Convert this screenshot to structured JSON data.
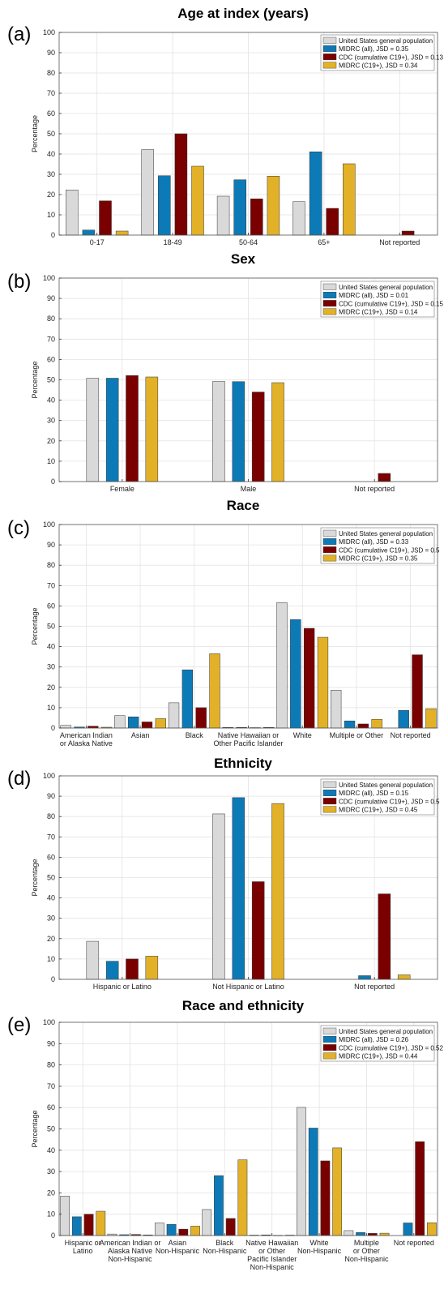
{
  "legend_names": {
    "us": "United States general population",
    "midrc_all": "MIDRC (all)",
    "cdc": "CDC (cumulative C19+)",
    "midrc_c19": "MIDRC (C19+)"
  },
  "colors": {
    "us": "#d9d9d9",
    "midrc_all": "#0d7ab8",
    "cdc": "#7a0000",
    "midrc_c19": "#e3b128"
  },
  "chart_data": [
    {
      "type": "bar",
      "letter": "(a)",
      "title": "Age at index (years)",
      "ylabel": "Percentage",
      "ylim": [
        0,
        100
      ],
      "yticks": [
        0,
        10,
        20,
        30,
        40,
        50,
        60,
        70,
        80,
        90,
        100
      ],
      "grid": true,
      "legend_position": "top-right",
      "legend": [
        "United States general population",
        "MIDRC (all), JSD = 0.35",
        "CDC (cumulative C19+), JSD = 0.13",
        "MIDRC (C19+), JSD = 0.34"
      ],
      "categories": [
        [
          "0-17"
        ],
        [
          "18-49"
        ],
        [
          "50-64"
        ],
        [
          "65+"
        ],
        [
          "Not reported"
        ]
      ],
      "series": [
        {
          "key": "us",
          "values": [
            22.3,
            42.2,
            19.2,
            16.5,
            0
          ]
        },
        {
          "key": "midrc_all",
          "values": [
            2.5,
            29.3,
            27.3,
            41.1,
            0
          ]
        },
        {
          "key": "cdc",
          "values": [
            16.9,
            50.0,
            17.9,
            13.2,
            2.0
          ]
        },
        {
          "key": "midrc_c19",
          "values": [
            2.0,
            34.0,
            29.1,
            35.2,
            0
          ]
        }
      ]
    },
    {
      "type": "bar",
      "letter": "(b)",
      "title": "Sex",
      "ylabel": "Percentage",
      "ylim": [
        0,
        100
      ],
      "yticks": [
        0,
        10,
        20,
        30,
        40,
        50,
        60,
        70,
        80,
        90,
        100
      ],
      "grid": true,
      "legend_position": "top-right",
      "legend": [
        "United States general population",
        "MIDRC (all), JSD = 0.01",
        "CDC (cumulative C19+), JSD = 0.15",
        "MIDRC (C19+), JSD = 0.14"
      ],
      "categories": [
        [
          "Female"
        ],
        [
          "Male"
        ],
        [
          "Not reported"
        ]
      ],
      "series": [
        {
          "key": "us",
          "values": [
            50.8,
            49.2,
            0
          ]
        },
        {
          "key": "midrc_all",
          "values": [
            50.8,
            49.1,
            0
          ]
        },
        {
          "key": "cdc",
          "values": [
            52.1,
            44.0,
            4.0
          ]
        },
        {
          "key": "midrc_c19",
          "values": [
            51.4,
            48.6,
            0
          ]
        }
      ]
    },
    {
      "type": "bar",
      "letter": "(c)",
      "title": "Race",
      "ylabel": "Percentage",
      "ylim": [
        0,
        100
      ],
      "yticks": [
        0,
        10,
        20,
        30,
        40,
        50,
        60,
        70,
        80,
        90,
        100
      ],
      "grid": true,
      "legend_position": "top-right",
      "legend": [
        "United States general population",
        "MIDRC (all), JSD = 0.33",
        "CDC (cumulative C19+), JSD = 0.5",
        "MIDRC (C19+), JSD = 0.35"
      ],
      "categories": [
        [
          "American Indian",
          "or Alaska Native"
        ],
        [
          "Asian"
        ],
        [
          "Black"
        ],
        [
          "Native Hawaiian or",
          "Other Pacific Islander"
        ],
        [
          "White"
        ],
        [
          "Multiple or Other"
        ],
        [
          "Not reported"
        ]
      ],
      "series": [
        {
          "key": "us",
          "values": [
            1.3,
            6.1,
            12.4,
            0.3,
            61.6,
            18.6,
            0
          ]
        },
        {
          "key": "midrc_all",
          "values": [
            0.5,
            5.5,
            28.6,
            0.3,
            53.3,
            3.5,
            8.7
          ]
        },
        {
          "key": "cdc",
          "values": [
            0.9,
            3.0,
            10.0,
            0.2,
            49.0,
            2.0,
            36.0
          ]
        },
        {
          "key": "midrc_c19",
          "values": [
            0.4,
            4.6,
            36.5,
            0.3,
            44.6,
            4.3,
            9.5
          ]
        }
      ]
    },
    {
      "type": "bar",
      "letter": "(d)",
      "title": "Ethnicity",
      "ylabel": "Percentage",
      "ylim": [
        0,
        100
      ],
      "yticks": [
        0,
        10,
        20,
        30,
        40,
        50,
        60,
        70,
        80,
        90,
        100
      ],
      "grid": true,
      "legend_position": "top-right",
      "legend": [
        "United States general population",
        "MIDRC (all), JSD = 0.15",
        "CDC (cumulative C19+), JSD = 0.5",
        "MIDRC (C19+), JSD = 0.45"
      ],
      "categories": [
        [
          "Hispanic or Latino"
        ],
        [
          "Not Hispanic or Latino"
        ],
        [
          "Not reported"
        ]
      ],
      "series": [
        {
          "key": "us",
          "values": [
            18.7,
            81.3,
            0
          ]
        },
        {
          "key": "midrc_all",
          "values": [
            8.9,
            89.3,
            1.8
          ]
        },
        {
          "key": "cdc",
          "values": [
            10.0,
            48.0,
            42.0
          ]
        },
        {
          "key": "midrc_c19",
          "values": [
            11.4,
            86.4,
            2.2
          ]
        }
      ]
    },
    {
      "type": "bar",
      "letter": "(e)",
      "title": "Race and ethnicity",
      "ylabel": "Percentage",
      "ylim": [
        0,
        100
      ],
      "yticks": [
        0,
        10,
        20,
        30,
        40,
        50,
        60,
        70,
        80,
        90,
        100
      ],
      "grid": true,
      "legend_position": "top-right",
      "legend": [
        "United States general population",
        "MIDRC (all), JSD = 0.26",
        "CDC (cumulative C19+), JSD = 0.52",
        "MIDRC (C19+), JSD = 0.44"
      ],
      "categories": [
        [
          "Hispanic or",
          "Latino"
        ],
        [
          "American Indian or",
          "Alaska Native",
          "Non-Hispanic"
        ],
        [
          "Asian",
          "Non-Hispanic"
        ],
        [
          "Black",
          "Non-Hispanic"
        ],
        [
          "Native Hawaiian",
          "or Other",
          "Pacific Islander",
          "Non-Hispanic"
        ],
        [
          "White",
          "Non-Hispanic"
        ],
        [
          "Multiple",
          "or Other",
          "Non-Hispanic"
        ],
        [
          "Not reported"
        ]
      ],
      "series": [
        {
          "key": "us",
          "values": [
            18.5,
            0.7,
            5.9,
            12.2,
            0.2,
            60.1,
            2.3,
            0
          ]
        },
        {
          "key": "midrc_all",
          "values": [
            8.8,
            0.4,
            5.2,
            28.1,
            0.3,
            50.4,
            1.4,
            5.9
          ]
        },
        {
          "key": "cdc",
          "values": [
            10.0,
            0.5,
            3.0,
            8.0,
            0.1,
            35.0,
            1.0,
            44.0
          ]
        },
        {
          "key": "midrc_c19",
          "values": [
            11.4,
            0.3,
            4.4,
            35.5,
            0.2,
            41.1,
            1.1,
            6.0
          ]
        }
      ]
    }
  ]
}
